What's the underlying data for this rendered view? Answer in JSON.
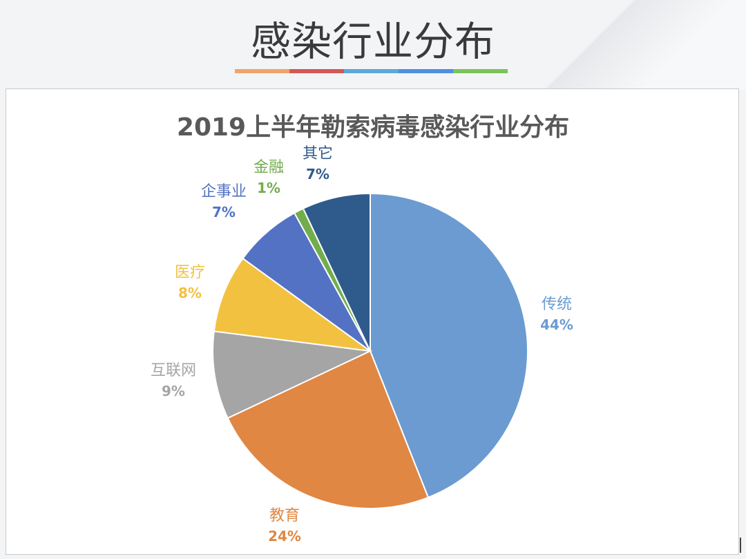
{
  "slide": {
    "title": "感染行业分布",
    "underline_colors": [
      "#f0a46b",
      "#d35858",
      "#5aa9dc",
      "#4f8fe0",
      "#7cc25c"
    ]
  },
  "chart_data": {
    "type": "pie",
    "title": "2019上半年勒索病毒感染行业分布",
    "slices": [
      {
        "label": "传统",
        "value": 44,
        "display": "44%",
        "color": "#6b9bd1"
      },
      {
        "label": "教育",
        "value": 24,
        "display": "24%",
        "color": "#e08743"
      },
      {
        "label": "互联网",
        "value": 9,
        "display": "9%",
        "color": "#a5a5a5"
      },
      {
        "label": "医疗",
        "value": 8,
        "display": "8%",
        "color": "#f2c140"
      },
      {
        "label": "企事业",
        "value": 7,
        "display": "7%",
        "color": "#5472c4"
      },
      {
        "label": "金融",
        "value": 1,
        "display": "1%",
        "color": "#72ad4d"
      },
      {
        "label": "其它",
        "value": 7,
        "display": "7%",
        "color": "#2f5b8c"
      }
    ],
    "start": "12 o'clock",
    "direction": "clockwise",
    "legend": "none (data labels outside slices)"
  }
}
